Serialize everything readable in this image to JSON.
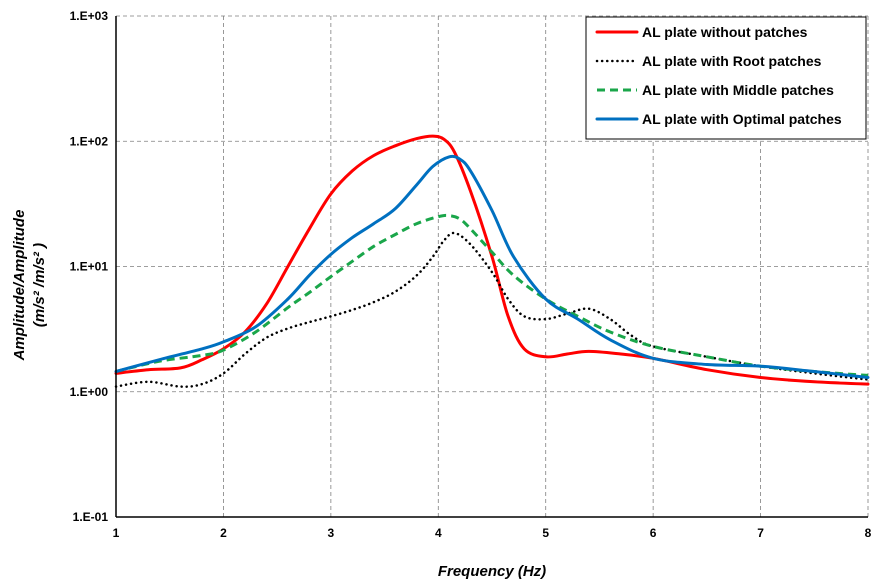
{
  "chart_data": {
    "type": "line",
    "title": "",
    "xlabel": "Frequency  (Hz)",
    "ylabel_lines": [
      "Amplitude/Amplitude",
      "(m/s² /m/s² )"
    ],
    "x_ticks": [
      "1",
      "2",
      "3",
      "4",
      "5",
      "6",
      "7",
      "8"
    ],
    "y_ticks": [
      "1.E-01",
      "1.E+00",
      "1.E+01",
      "1.E+02",
      "1.E+03"
    ],
    "xlim": [
      1,
      8
    ],
    "ylim": [
      0.1,
      1000
    ],
    "y_scale": "log",
    "grid": true,
    "legend_position": "top-right",
    "series": [
      {
        "name": "AL plate without patches",
        "color": "#ff0000",
        "style": "solid",
        "x": [
          1.0,
          1.3,
          1.6,
          1.8,
          2.0,
          2.2,
          2.4,
          2.6,
          2.8,
          3.0,
          3.2,
          3.4,
          3.6,
          3.8,
          3.95,
          4.05,
          4.15,
          4.3,
          4.5,
          4.65,
          4.8,
          5.0,
          5.2,
          5.4,
          5.7,
          6.0,
          6.5,
          7.0,
          7.5,
          8.0
        ],
        "y": [
          1.4,
          1.5,
          1.55,
          1.8,
          2.2,
          3.0,
          5.0,
          10.0,
          20.0,
          38.0,
          58.0,
          77.0,
          92.0,
          105.0,
          110.0,
          104.0,
          82.0,
          40.0,
          12.0,
          4.0,
          2.2,
          1.9,
          2.0,
          2.1,
          2.0,
          1.85,
          1.5,
          1.3,
          1.2,
          1.15
        ]
      },
      {
        "name": "AL plate with Root patches",
        "color": "#000000",
        "style": "dotted",
        "x": [
          1.0,
          1.3,
          1.6,
          1.8,
          2.0,
          2.2,
          2.4,
          2.6,
          2.8,
          3.0,
          3.2,
          3.4,
          3.6,
          3.8,
          3.95,
          4.05,
          4.15,
          4.3,
          4.5,
          4.65,
          4.8,
          5.0,
          5.2,
          5.4,
          5.6,
          5.8,
          6.0,
          6.5,
          7.0,
          7.5,
          8.0
        ],
        "y": [
          1.1,
          1.2,
          1.1,
          1.15,
          1.4,
          2.0,
          2.7,
          3.2,
          3.6,
          4.0,
          4.5,
          5.2,
          6.3,
          8.5,
          12.0,
          16.0,
          18.5,
          15.0,
          9.0,
          5.5,
          4.0,
          3.8,
          4.2,
          4.6,
          3.8,
          2.8,
          2.3,
          1.9,
          1.6,
          1.4,
          1.25
        ]
      },
      {
        "name": "AL plate with Middle patches",
        "color": "#1aa64a",
        "style": "dashed",
        "x": [
          1.0,
          1.4,
          1.8,
          2.0,
          2.3,
          2.6,
          2.8,
          3.0,
          3.2,
          3.4,
          3.6,
          3.8,
          4.0,
          4.1,
          4.2,
          4.3,
          4.5,
          4.7,
          5.0,
          5.3,
          5.6,
          6.0,
          6.5,
          7.0,
          7.5,
          8.0
        ],
        "y": [
          1.45,
          1.75,
          1.95,
          2.15,
          3.0,
          4.7,
          6.2,
          8.3,
          11.0,
          14.5,
          18.0,
          22.0,
          25.0,
          25.5,
          24.0,
          20.0,
          13.0,
          8.5,
          5.5,
          4.0,
          3.0,
          2.3,
          1.9,
          1.6,
          1.45,
          1.35
        ]
      },
      {
        "name": "AL plate with Optimal patches",
        "color": "#0070c0",
        "style": "solid",
        "x": [
          1.0,
          1.4,
          1.8,
          2.0,
          2.3,
          2.6,
          2.8,
          3.0,
          3.2,
          3.4,
          3.6,
          3.8,
          3.95,
          4.1,
          4.2,
          4.3,
          4.5,
          4.7,
          5.0,
          5.3,
          5.6,
          6.0,
          6.5,
          7.0,
          7.5,
          8.0
        ],
        "y": [
          1.45,
          1.8,
          2.2,
          2.5,
          3.3,
          5.5,
          8.5,
          12.5,
          17.0,
          22.0,
          29.0,
          45.0,
          63.0,
          75.0,
          72.0,
          58.0,
          28.0,
          12.0,
          5.5,
          3.8,
          2.6,
          1.85,
          1.65,
          1.6,
          1.45,
          1.3
        ]
      }
    ]
  }
}
